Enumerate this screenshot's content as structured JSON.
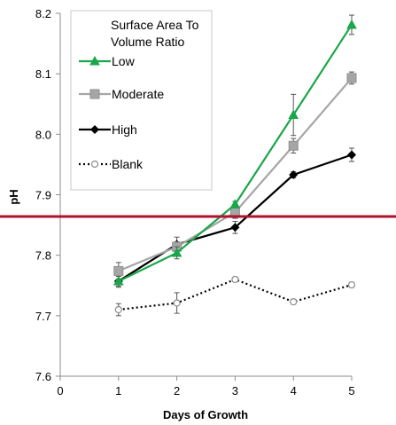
{
  "chart_data": {
    "type": "line",
    "xlabel": "Days of Growth",
    "ylabel": "pH",
    "xlim": [
      0,
      5
    ],
    "ylim": [
      7.6,
      8.2
    ],
    "xticks": [
      "0",
      "1",
      "2",
      "3",
      "4",
      "5"
    ],
    "yticks": [
      "7.6",
      "7.7",
      "7.8",
      "7.9",
      "8.0",
      "8.1",
      "8.2"
    ],
    "grid": false,
    "legend": {
      "title_line1": "Surface Area To",
      "title_line2": "Volume Ratio",
      "placement": "top-left"
    },
    "x": [
      1,
      2,
      3,
      4,
      5
    ],
    "series": [
      {
        "name": "Low",
        "values": [
          7.757,
          7.804,
          7.884,
          8.032,
          8.181
        ],
        "errors": [
          0.008,
          0.01,
          0.005,
          0.034,
          0.016
        ],
        "color": "#1aa64a",
        "marker": "triangle",
        "dash": "solid"
      },
      {
        "name": "Moderate",
        "values": [
          7.774,
          7.814,
          7.871,
          7.981,
          8.093
        ],
        "errors": [
          0.014,
          0.008,
          0.01,
          0.012,
          0.01
        ],
        "color": "#a6a6a6",
        "marker": "square",
        "dash": "solid"
      },
      {
        "name": "High",
        "values": [
          7.757,
          7.818,
          7.846,
          7.933,
          7.966
        ],
        "errors": [
          0.01,
          0.012,
          0.01,
          0.005,
          0.011
        ],
        "color": "#000000",
        "marker": "diamond",
        "dash": "solid"
      },
      {
        "name": "Blank",
        "values": [
          7.71,
          7.721,
          7.76,
          7.723,
          7.751
        ],
        "errors": [
          0.01,
          0.017,
          0.004,
          0.004,
          0.004
        ],
        "color": "#000000",
        "marker": "circle-open",
        "dash": "dotted"
      }
    ],
    "annotations": {
      "reference_line_color": "#b0132e"
    }
  }
}
